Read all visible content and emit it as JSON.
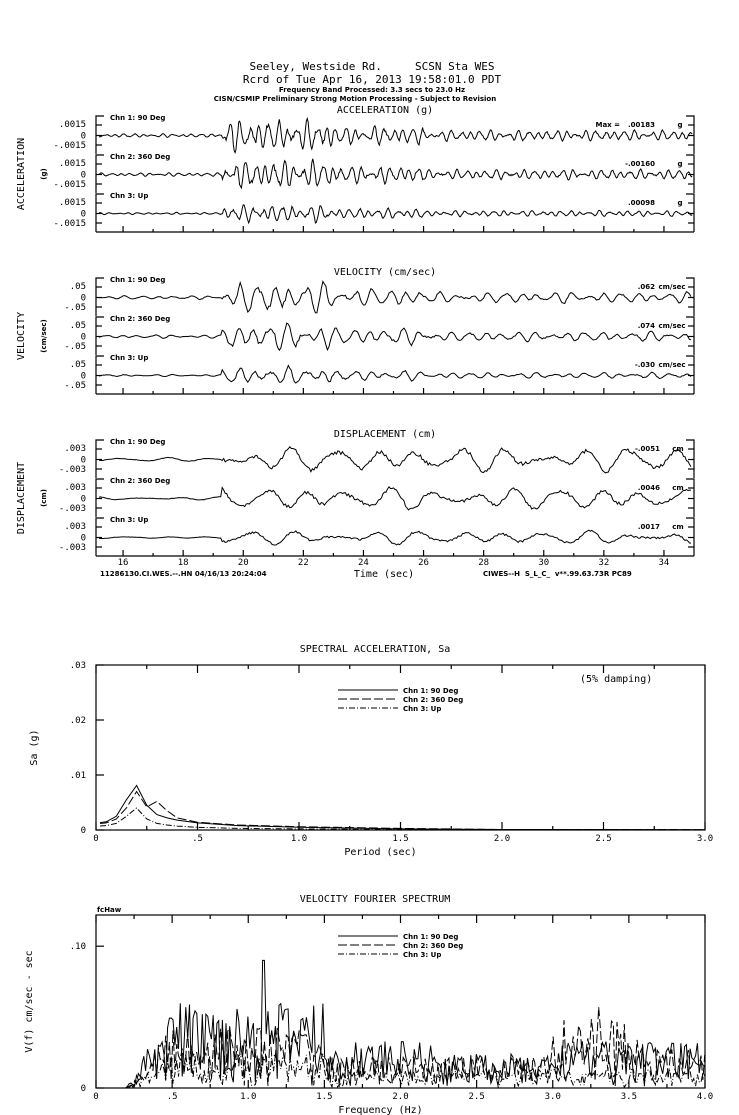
{
  "header": {
    "line1": "Seeley, Westside Rd.     SCSN Sta WES",
    "line2": "Rcrd of Tue Apr 16, 2013 19:58:01.0 PDT",
    "line3": "Frequency Band Processed: 3.3 secs to 23.0 Hz",
    "line4": "CISN/CSMIP Preliminary Strong Motion Processing - Subject to Revision"
  },
  "footer": {
    "left": "11286130.CI.WES.--.HN 04/16/13 20:24:04",
    "right": "CIWES--H  S_L_C_  v**.99.63.73R PC89"
  },
  "chart_data": [
    {
      "type": "line",
      "title": "ACCELERATION (g)",
      "ylabel": "ACCELERATION",
      "yunit": "(g)",
      "xlabel": "Time (sec)",
      "xlim": [
        15.1,
        35
      ],
      "xticks": [
        "16",
        "18",
        "20",
        "22",
        "24",
        "26",
        "28",
        "30",
        "32",
        "34"
      ],
      "ylim": [
        -0.0015,
        0.0015
      ],
      "yticks": [
        ".0015",
        "0",
        "-.0015"
      ],
      "max_label": "Max =",
      "unit": "g",
      "series": [
        {
          "name": "Chn 1: 90 Deg",
          "peak": ".00183"
        },
        {
          "name": "Chn 2: 360 Deg",
          "peak": "-.00160"
        },
        {
          "name": "Chn 3: Up",
          "peak": ".00098"
        }
      ]
    },
    {
      "type": "line",
      "title": "VELOCITY (cm/sec)",
      "ylabel": "VELOCITY",
      "yunit": "(cm/sec)",
      "xlim": [
        15.1,
        35
      ],
      "ylim": [
        -0.05,
        0.05
      ],
      "yticks": [
        ".05",
        "0",
        "-.05"
      ],
      "unit": "cm/sec",
      "series": [
        {
          "name": "Chn 1: 90 Deg",
          "peak": ".062"
        },
        {
          "name": "Chn 2: 360 Deg",
          "peak": ".074"
        },
        {
          "name": "Chn 3: Up",
          "peak": "-.030"
        }
      ]
    },
    {
      "type": "line",
      "title": "DISPLACEMENT (cm)",
      "ylabel": "DISPLACEMENT",
      "yunit": "(cm)",
      "xlim": [
        15.1,
        35
      ],
      "ylim": [
        -0.003,
        0.003
      ],
      "yticks": [
        ".003",
        "0",
        "-.003"
      ],
      "unit": "cm",
      "series": [
        {
          "name": "Chn 1: 90 Deg",
          "peak": "-.0051"
        },
        {
          "name": "Chn 2: 360 Deg",
          "peak": ".0046"
        },
        {
          "name": "Chn 3: Up",
          "peak": ".0017"
        }
      ]
    },
    {
      "type": "line",
      "title": "SPECTRAL ACCELERATION, Sa",
      "note": "(5% damping)",
      "xlabel": "Period (sec)",
      "ylabel": "Sa (g)",
      "xlim": [
        0,
        3.0
      ],
      "ylim": [
        0,
        0.03
      ],
      "xticks": [
        "0",
        ".5",
        "1.0",
        "1.5",
        "2.0",
        "2.5",
        "3.0"
      ],
      "yticks": [
        "0",
        ".01",
        ".02",
        ".03"
      ],
      "x": [
        0.05,
        0.1,
        0.15,
        0.2,
        0.25,
        0.3,
        0.35,
        0.4,
        0.5,
        0.7,
        1.0,
        1.5,
        2.0,
        3.0
      ],
      "series": [
        {
          "name": "Chn 1: 90 Deg",
          "style": "solid",
          "values": [
            0.0015,
            0.0025,
            0.0055,
            0.0081,
            0.0045,
            0.0028,
            0.0022,
            0.0018,
            0.0013,
            0.0008,
            0.0005,
            0.0002,
            0.0001,
            5e-05
          ]
        },
        {
          "name": "Chn 2: 360 Deg",
          "style": "dashed",
          "values": [
            0.0013,
            0.002,
            0.004,
            0.007,
            0.0042,
            0.0052,
            0.0035,
            0.0022,
            0.0014,
            0.0009,
            0.0006,
            0.0003,
            0.0001,
            5e-05
          ]
        },
        {
          "name": "Chn 3: Up",
          "style": "dashdot",
          "values": [
            0.0008,
            0.0012,
            0.0025,
            0.004,
            0.002,
            0.0012,
            0.0009,
            0.0007,
            0.0005,
            0.0003,
            0.0002,
            0.0001,
            5e-05,
            2e-05
          ]
        }
      ]
    },
    {
      "type": "line",
      "title": "VELOCITY FOURIER SPECTRUM",
      "corner_label": "fcHaw",
      "xlabel": "Frequency (Hz)",
      "ylabel": "V(f)  cm/sec - sec",
      "xlim": [
        0,
        4.0
      ],
      "ylim": [
        0,
        0.122
      ],
      "xticks": [
        "0",
        ".5",
        "1.0",
        "1.5",
        "2.0",
        "2.5",
        "3.0",
        "3.5",
        "4.0"
      ],
      "yticks": [
        "0",
        ".10"
      ],
      "series": [
        {
          "name": "Chn 1: 90 Deg",
          "style": "solid",
          "peak_freq": 1.1,
          "peak": 0.09
        },
        {
          "name": "Chn 2: 360 Deg",
          "style": "dashed",
          "peak_freq": 3.3,
          "peak": 0.057
        },
        {
          "name": "Chn 3: Up",
          "style": "dashdot",
          "peak_freq": 1.0,
          "peak": 0.03
        }
      ]
    }
  ]
}
